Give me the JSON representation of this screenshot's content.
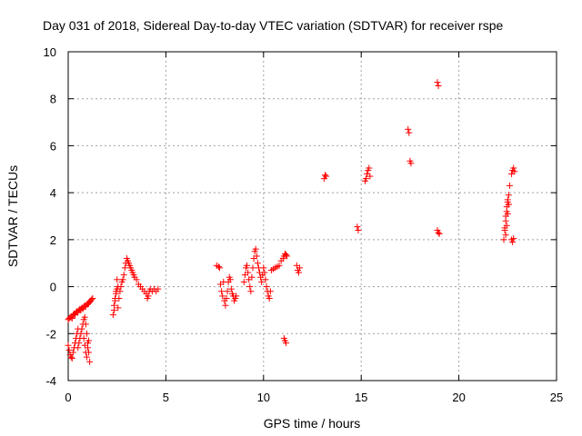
{
  "chart_data": {
    "type": "scatter",
    "title": "Day 031 of 2018, Sidereal Day-to-day VTEC variation (SDTVAR) for receiver rspe",
    "xlabel": "GPS time / hours",
    "ylabel": "SDTVAR / TECUs",
    "xlim": [
      0,
      25
    ],
    "ylim": [
      -4,
      10
    ],
    "xticks": [
      0,
      5,
      10,
      15,
      20,
      25
    ],
    "yticks": [
      -4,
      -2,
      0,
      2,
      4,
      6,
      8,
      10
    ],
    "xtick_labels": [
      "0",
      "5",
      "10",
      "15",
      "20",
      "25"
    ],
    "ytick_labels": [
      "-4",
      "-2",
      "0",
      "2",
      "4",
      "6",
      "8",
      "10"
    ],
    "grid": true,
    "marker": "+",
    "color": "#ff0000",
    "series": [
      {
        "name": "SDTVAR",
        "x": [
          0.0,
          0.05,
          0.1,
          0.15,
          0.2,
          0.25,
          0.3,
          0.35,
          0.4,
          0.45,
          0.5,
          0.55,
          0.6,
          0.65,
          0.7,
          0.75,
          0.8,
          0.85,
          0.9,
          0.95,
          1.0,
          1.05,
          1.1,
          1.15,
          1.2,
          1.25,
          0.0,
          0.05,
          0.1,
          0.15,
          0.2,
          0.25,
          0.3,
          0.35,
          0.4,
          0.45,
          0.5,
          0.5,
          0.55,
          0.6,
          0.65,
          0.7,
          0.75,
          0.8,
          0.85,
          0.9,
          0.95,
          1.0,
          1.05,
          1.1,
          0.8,
          0.85,
          0.9,
          0.95,
          1.0,
          1.05,
          2.3,
          2.35,
          2.4,
          2.45,
          2.5,
          2.55,
          2.6,
          2.65,
          2.7,
          2.75,
          2.8,
          2.85,
          2.9,
          2.95,
          3.0,
          3.05,
          3.1,
          3.15,
          3.2,
          3.25,
          3.3,
          3.35,
          3.4,
          3.5,
          3.6,
          3.7,
          3.8,
          3.9,
          4.0,
          4.05,
          4.1,
          4.15,
          4.2,
          4.3,
          4.4,
          4.5,
          4.6,
          2.35,
          2.4,
          2.45,
          2.5,
          2.55,
          7.6,
          7.7,
          7.75,
          7.8,
          7.85,
          7.9,
          7.95,
          8.0,
          8.05,
          8.1,
          8.15,
          8.2,
          8.25,
          8.3,
          8.35,
          8.4,
          8.45,
          8.5,
          8.55,
          8.6,
          9.0,
          9.05,
          9.1,
          9.15,
          9.2,
          9.25,
          9.3,
          9.35,
          9.4,
          9.45,
          9.5,
          9.55,
          9.6,
          9.65,
          9.7,
          9.75,
          9.8,
          9.85,
          9.9,
          9.95,
          10.0,
          10.05,
          10.1,
          10.15,
          10.2,
          10.25,
          10.3,
          10.35,
          10.4,
          10.5,
          10.6,
          10.7,
          10.8,
          10.9,
          11.0,
          11.05,
          11.1,
          11.15,
          11.2,
          11.05,
          11.1,
          11.15,
          11.7,
          11.75,
          11.8,
          11.85,
          13.1,
          13.15,
          13.2,
          14.8,
          14.85,
          15.2,
          15.25,
          15.3,
          15.35,
          15.4,
          15.45,
          17.4,
          17.45,
          17.5,
          17.55,
          18.9,
          18.95,
          18.9,
          18.95,
          19.0,
          22.3,
          22.35,
          22.4,
          22.45,
          22.5,
          22.55,
          22.6,
          22.35,
          22.4,
          22.45,
          22.5,
          22.55,
          22.4,
          22.45,
          22.5,
          22.55,
          22.7,
          22.75,
          22.8,
          22.85,
          22.7,
          22.75,
          22.8
        ],
        "y": [
          -1.4,
          -1.35,
          -1.3,
          -1.3,
          -1.35,
          -1.2,
          -1.15,
          -1.2,
          -1.1,
          -1.05,
          -1.1,
          -1.0,
          -0.95,
          -1.0,
          -0.9,
          -0.95,
          -0.85,
          -0.8,
          -0.85,
          -0.75,
          -0.75,
          -0.7,
          -0.65,
          -0.6,
          -0.55,
          -0.5,
          -2.5,
          -2.7,
          -2.9,
          -3.0,
          -3.05,
          -2.8,
          -2.6,
          -2.4,
          -2.2,
          -2.0,
          -1.8,
          -2.6,
          -2.4,
          -2.2,
          -2.0,
          -1.8,
          -1.6,
          -1.4,
          -1.3,
          -1.6,
          -2.0,
          -2.4,
          -2.8,
          -3.2,
          -2.2,
          -2.5,
          -2.8,
          -3.0,
          -2.6,
          -2.3,
          -1.2,
          -1.0,
          -0.6,
          -0.2,
          0.3,
          -0.9,
          -0.5,
          -0.2,
          0.0,
          0.2,
          0.3,
          0.5,
          0.8,
          1.0,
          1.2,
          1.1,
          1.0,
          0.9,
          0.8,
          0.7,
          0.6,
          0.5,
          0.4,
          0.3,
          0.1,
          0.0,
          -0.1,
          -0.2,
          -0.3,
          -0.5,
          -0.4,
          -0.2,
          -0.1,
          -0.2,
          -0.1,
          -0.2,
          -0.1,
          -0.8,
          -0.5,
          -0.3,
          -0.1,
          0.0,
          0.9,
          0.85,
          0.8,
          0.1,
          -0.2,
          -0.4,
          0.2,
          -0.6,
          -0.8,
          -0.5,
          -0.2,
          0.2,
          0.4,
          0.3,
          -0.1,
          -0.3,
          -0.4,
          -0.6,
          -0.5,
          -0.4,
          0.2,
          0.5,
          0.8,
          0.9,
          0.6,
          0.3,
          0.0,
          -0.2,
          0.4,
          0.8,
          1.2,
          1.5,
          1.6,
          1.3,
          1.0,
          0.8,
          0.6,
          0.4,
          0.2,
          0.5,
          0.8,
          0.6,
          0.3,
          0.0,
          -0.2,
          -0.4,
          -0.5,
          -0.2,
          0.7,
          0.75,
          0.8,
          0.85,
          0.9,
          1.1,
          1.2,
          1.3,
          1.4,
          1.35,
          1.3,
          -2.2,
          -2.3,
          -2.4,
          0.9,
          0.7,
          0.6,
          0.8,
          4.6,
          4.75,
          4.7,
          2.55,
          2.4,
          4.5,
          4.6,
          4.8,
          4.95,
          5.05,
          4.7,
          6.7,
          6.55,
          5.35,
          5.25,
          8.7,
          8.55,
          2.4,
          2.3,
          2.25,
          2.0,
          2.4,
          2.8,
          3.2,
          3.6,
          3.9,
          4.3,
          2.5,
          3.0,
          3.4,
          3.7,
          3.5,
          2.2,
          2.6,
          3.1,
          3.5,
          4.8,
          4.95,
          5.05,
          4.9,
          2.0,
          1.9,
          2.05
        ]
      }
    ]
  }
}
